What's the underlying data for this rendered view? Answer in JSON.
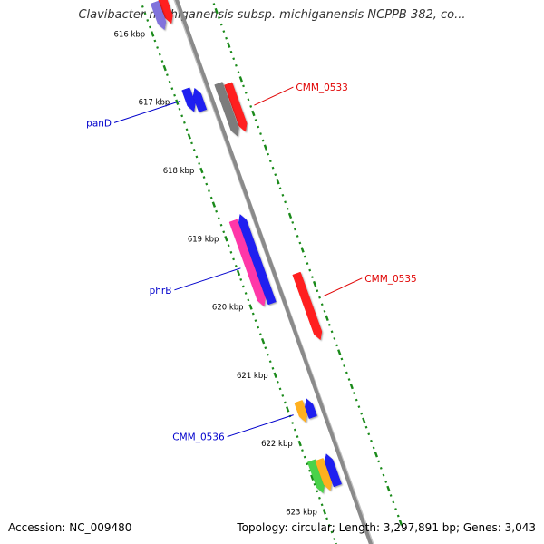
{
  "title": "Clavibacter michiganensis subsp. michiganensis NCPPB 382, co...",
  "colors": {
    "backbone": "#8a8a8a",
    "tick": "#1a8a1a",
    "label_blue": "#0000cc",
    "label_red": "#e00000"
  },
  "ticks": [
    {
      "label": "616 kbp",
      "pos": 616
    },
    {
      "label": "617 kbp",
      "pos": 617
    },
    {
      "label": "618 kbp",
      "pos": 618
    },
    {
      "label": "619 kbp",
      "pos": 619
    },
    {
      "label": "620 kbp",
      "pos": 620
    },
    {
      "label": "621 kbp",
      "pos": 621
    },
    {
      "label": "622 kbp",
      "pos": 622
    },
    {
      "label": "623 kbp",
      "pos": 623
    }
  ],
  "features": [
    {
      "start": 615.55,
      "end": 615.95,
      "side": "inner",
      "lane": 0,
      "color": "#ff0000",
      "arrow": "end"
    },
    {
      "start": 615.6,
      "end": 616.0,
      "side": "inner",
      "lane": 1,
      "color": "#7060d8",
      "arrow": "end"
    },
    {
      "start": 616.87,
      "end": 617.2,
      "side": "inner",
      "lane": 1,
      "color": "#0000ee",
      "arrow": "end"
    },
    {
      "start": 616.9,
      "end": 617.23,
      "side": "inner",
      "lane": 0,
      "color": "#0000ee",
      "arrow": "start"
    },
    {
      "start": 617.0,
      "end": 617.7,
      "side": "outer",
      "lane": 1,
      "color": "#ff0000",
      "arrow": "end"
    },
    {
      "start": 616.95,
      "end": 617.72,
      "side": "outer",
      "lane": 0,
      "color": "#6a6a6a",
      "arrow": "end"
    },
    {
      "start": 618.8,
      "end": 620.05,
      "side": "inner",
      "lane": 1,
      "color": "#ff1a9c",
      "arrow": "end"
    },
    {
      "start": 618.75,
      "end": 620.05,
      "side": "inner",
      "lane": 0,
      "color": "#0000ee",
      "arrow": "start"
    },
    {
      "start": 619.78,
      "end": 620.75,
      "side": "outer",
      "lane": 1,
      "color": "#ff0000",
      "arrow": "end"
    },
    {
      "start": 621.45,
      "end": 621.75,
      "side": "inner",
      "lane": 1,
      "color": "#ffa500",
      "arrow": "end"
    },
    {
      "start": 621.45,
      "end": 621.72,
      "side": "inner",
      "lane": 0,
      "color": "#0000ee",
      "arrow": "start"
    },
    {
      "start": 622.28,
      "end": 622.75,
      "side": "inner",
      "lane": 2,
      "color": "#33cc33",
      "arrow": "end"
    },
    {
      "start": 622.3,
      "end": 622.75,
      "side": "inner",
      "lane": 1,
      "color": "#ffa500",
      "arrow": "end"
    },
    {
      "start": 622.26,
      "end": 622.72,
      "side": "inner",
      "lane": 0,
      "color": "#0000ee",
      "arrow": "start"
    }
  ],
  "gene_labels": [
    {
      "text": "panD",
      "pos": 617.0,
      "side": "inner",
      "color": "#0000cc"
    },
    {
      "text": "CMM_0533",
      "pos": 617.4,
      "side": "outer",
      "color": "#e00000"
    },
    {
      "text": "phrB",
      "pos": 619.45,
      "side": "inner",
      "color": "#0000cc"
    },
    {
      "text": "CMM_0535",
      "pos": 620.2,
      "side": "outer",
      "color": "#e00000"
    },
    {
      "text": "CMM_0536",
      "pos": 621.6,
      "side": "inner",
      "color": "#0000cc"
    }
  ],
  "footer": {
    "accession": "Accession: NC_009480",
    "summary": "Topology: circular; Length: 3,297,891 bp; Genes: 3,043"
  }
}
